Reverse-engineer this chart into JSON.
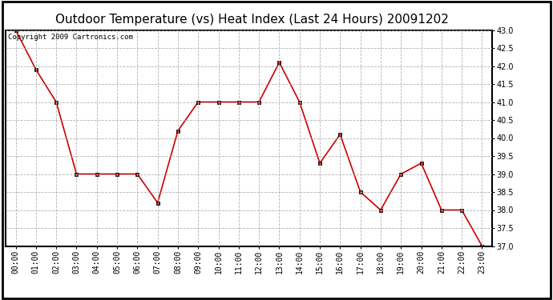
{
  "title": "Outdoor Temperature (vs) Heat Index (Last 24 Hours) 20091202",
  "copyright_text": "Copyright 2009 Cartronics.com",
  "x_labels": [
    "00:00",
    "01:00",
    "02:00",
    "03:00",
    "04:00",
    "05:00",
    "06:00",
    "07:00",
    "08:00",
    "09:00",
    "10:00",
    "11:00",
    "12:00",
    "13:00",
    "14:00",
    "15:00",
    "16:00",
    "17:00",
    "18:00",
    "19:00",
    "20:00",
    "21:00",
    "22:00",
    "23:00"
  ],
  "y_values": [
    43.0,
    41.9,
    41.0,
    39.0,
    39.0,
    39.0,
    39.0,
    38.2,
    40.2,
    41.0,
    41.0,
    41.0,
    41.0,
    42.1,
    41.0,
    39.3,
    40.1,
    38.5,
    38.0,
    39.0,
    39.3,
    38.0,
    38.0,
    37.0
  ],
  "ylim": [
    37.0,
    43.0
  ],
  "yticks": [
    37.0,
    37.5,
    38.0,
    38.5,
    39.0,
    39.5,
    40.0,
    40.5,
    41.0,
    41.5,
    42.0,
    42.5,
    43.0
  ],
  "line_color": "#cc0000",
  "marker": "s",
  "marker_size": 3,
  "background_color": "#ffffff",
  "plot_bg_color": "#ffffff",
  "grid_color": "#aaaaaa",
  "title_fontsize": 11,
  "tick_fontsize": 7,
  "copyright_fontsize": 6.5,
  "ylabel_fontsize": 8
}
